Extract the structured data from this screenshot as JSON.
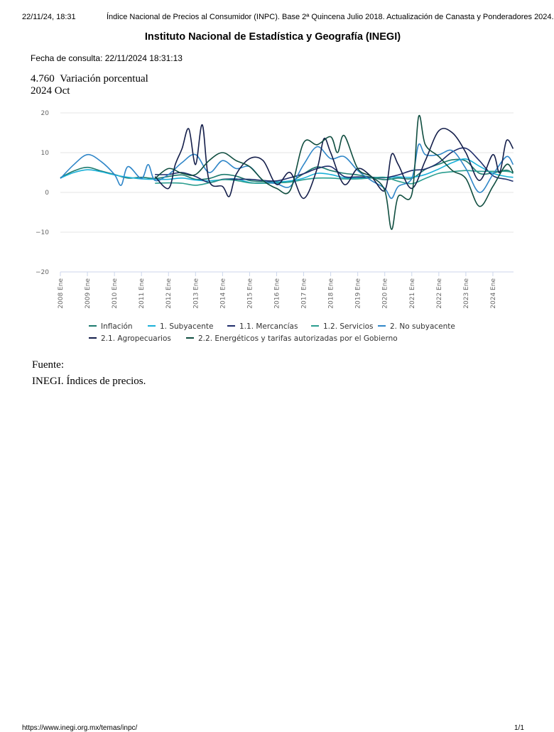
{
  "header": {
    "datetime": "22/11/24, 18:31",
    "doc_title": "Índice Nacional de Precios al Consumidor (INPC). Base 2ª Quincena Julio 2018. Actualización de Canasta y Ponderadores 2024."
  },
  "organization": "Instituto Nacional de Estadística y Geografía (INEGI)",
  "consulta": "Fecha de consulta: 22/11/2024 18:31:13",
  "current_value": {
    "value": "4.760",
    "label": "Variación porcentual",
    "period": "2024 Oct"
  },
  "source": {
    "label": "Fuente:",
    "text": "INEGI. Índices de precios."
  },
  "footer": {
    "url": "https://www.inegi.org.mx/temas/inpc/",
    "page": "1/1"
  },
  "chart_data": {
    "type": "line",
    "ylim": [
      -20,
      20
    ],
    "yticks": [
      "20",
      "10",
      "0",
      "−10",
      "−20"
    ],
    "ytick_values": [
      20,
      10,
      0,
      -10,
      -20
    ],
    "xticks": [
      "2008 Ene",
      "2009 Ene",
      "2010 Ene",
      "2011 Ene",
      "2012 Ene",
      "2013 Ene",
      "2014 Ene",
      "2015 Ene",
      "2016 Ene",
      "2017 Ene",
      "2018 Ene",
      "2019 Ene",
      "2020 Ene",
      "2021 Ene",
      "2022 Ene",
      "2023 Ene",
      "2024 Ene"
    ],
    "xlim": [
      "2008-01",
      "2024-10"
    ],
    "grid": true,
    "legend_position": "bottom",
    "series": [
      {
        "name": "Inflación",
        "color": "#1d7a6e",
        "points": [
          [
            "2008-01",
            3.7
          ],
          [
            "2008-07",
            5.4
          ],
          [
            "2009-01",
            6.3
          ],
          [
            "2009-07",
            5.4
          ],
          [
            "2010-01",
            4.5
          ],
          [
            "2010-07",
            3.6
          ],
          [
            "2011-01",
            3.8
          ],
          [
            "2011-07",
            3.5
          ],
          [
            "2012-01",
            4.0
          ],
          [
            "2012-07",
            4.4
          ],
          [
            "2013-01",
            3.3
          ],
          [
            "2013-07",
            3.5
          ],
          [
            "2014-01",
            4.5
          ],
          [
            "2014-07",
            4.1
          ],
          [
            "2015-01",
            3.0
          ],
          [
            "2015-07",
            2.7
          ],
          [
            "2016-01",
            2.6
          ],
          [
            "2016-07",
            2.7
          ],
          [
            "2017-01",
            4.7
          ],
          [
            "2017-07",
            6.4
          ],
          [
            "2018-01",
            5.5
          ],
          [
            "2018-07",
            4.8
          ],
          [
            "2019-01",
            4.4
          ],
          [
            "2019-07",
            3.8
          ],
          [
            "2020-01",
            3.2
          ],
          [
            "2020-07",
            3.6
          ],
          [
            "2021-01",
            3.5
          ],
          [
            "2021-07",
            5.8
          ],
          [
            "2022-01",
            7.1
          ],
          [
            "2022-07",
            8.2
          ],
          [
            "2023-01",
            7.9
          ],
          [
            "2023-07",
            4.8
          ],
          [
            "2024-01",
            4.9
          ],
          [
            "2024-07",
            5.6
          ],
          [
            "2024-10",
            4.76
          ]
        ]
      },
      {
        "name": "1. Subyacente",
        "color": "#19b0d8",
        "points": [
          [
            "2008-01",
            3.6
          ],
          [
            "2008-07",
            5.0
          ],
          [
            "2009-01",
            5.7
          ],
          [
            "2009-07",
            5.2
          ],
          [
            "2010-01",
            4.4
          ],
          [
            "2010-07",
            3.8
          ],
          [
            "2011-01",
            3.4
          ],
          [
            "2011-07",
            3.3
          ],
          [
            "2012-01",
            3.3
          ],
          [
            "2012-07",
            3.6
          ],
          [
            "2013-01",
            3.1
          ],
          [
            "2013-07",
            2.9
          ],
          [
            "2014-01",
            3.2
          ],
          [
            "2014-07",
            3.4
          ],
          [
            "2015-01",
            2.5
          ],
          [
            "2015-07",
            2.3
          ],
          [
            "2016-01",
            2.6
          ],
          [
            "2016-07",
            2.9
          ],
          [
            "2017-01",
            3.6
          ],
          [
            "2017-07",
            4.8
          ],
          [
            "2018-01",
            4.5
          ],
          [
            "2018-07",
            3.7
          ],
          [
            "2019-01",
            3.6
          ],
          [
            "2019-07",
            3.8
          ],
          [
            "2020-01",
            3.7
          ],
          [
            "2020-07",
            3.9
          ],
          [
            "2021-01",
            3.8
          ],
          [
            "2021-07",
            4.5
          ],
          [
            "2022-01",
            5.9
          ],
          [
            "2022-07",
            7.5
          ],
          [
            "2023-01",
            8.4
          ],
          [
            "2023-07",
            6.6
          ],
          [
            "2024-01",
            4.8
          ],
          [
            "2024-07",
            4.0
          ],
          [
            "2024-10",
            3.8
          ]
        ]
      },
      {
        "name": "1.1. Mercancías",
        "color": "#1f2d6b",
        "points": [
          [
            "2011-07",
            4.5
          ],
          [
            "2012-01",
            4.5
          ],
          [
            "2012-07",
            5.0
          ],
          [
            "2013-01",
            4.0
          ],
          [
            "2013-07",
            2.5
          ],
          [
            "2014-01",
            3.3
          ],
          [
            "2014-07",
            3.3
          ],
          [
            "2015-01",
            3.3
          ],
          [
            "2015-07",
            3.0
          ],
          [
            "2016-01",
            2.9
          ],
          [
            "2016-07",
            3.7
          ],
          [
            "2017-01",
            4.7
          ],
          [
            "2017-07",
            6.0
          ],
          [
            "2018-01",
            6.5
          ],
          [
            "2018-07",
            4.0
          ],
          [
            "2019-01",
            3.9
          ],
          [
            "2019-07",
            3.8
          ],
          [
            "2020-01",
            3.7
          ],
          [
            "2020-07",
            4.4
          ],
          [
            "2021-01",
            5.5
          ],
          [
            "2021-07",
            5.9
          ],
          [
            "2022-01",
            7.5
          ],
          [
            "2022-07",
            10.2
          ],
          [
            "2023-01",
            11.1
          ],
          [
            "2023-07",
            8.0
          ],
          [
            "2024-01",
            4.2
          ],
          [
            "2024-07",
            3.3
          ],
          [
            "2024-10",
            2.8
          ]
        ]
      },
      {
        "name": "1.2. Servicios",
        "color": "#2a9d8f",
        "points": [
          [
            "2011-07",
            2.3
          ],
          [
            "2012-01",
            2.4
          ],
          [
            "2012-07",
            2.3
          ],
          [
            "2013-01",
            1.8
          ],
          [
            "2013-07",
            2.4
          ],
          [
            "2014-01",
            3.2
          ],
          [
            "2014-07",
            3.0
          ],
          [
            "2015-01",
            2.4
          ],
          [
            "2015-07",
            2.3
          ],
          [
            "2016-01",
            2.4
          ],
          [
            "2016-07",
            2.6
          ],
          [
            "2017-01",
            3.2
          ],
          [
            "2017-07",
            3.6
          ],
          [
            "2018-01",
            3.6
          ],
          [
            "2018-07",
            3.4
          ],
          [
            "2019-01",
            3.4
          ],
          [
            "2019-07",
            3.6
          ],
          [
            "2020-01",
            3.8
          ],
          [
            "2020-07",
            2.8
          ],
          [
            "2021-01",
            2.2
          ],
          [
            "2021-07",
            3.5
          ],
          [
            "2022-01",
            4.8
          ],
          [
            "2022-07",
            5.2
          ],
          [
            "2023-01",
            5.5
          ],
          [
            "2023-07",
            5.3
          ],
          [
            "2024-01",
            5.3
          ],
          [
            "2024-07",
            5.3
          ],
          [
            "2024-10",
            5.0
          ]
        ]
      },
      {
        "name": "2. No subyacente",
        "color": "#2f86c8",
        "points": [
          [
            "2008-01",
            3.5
          ],
          [
            "2008-07",
            7.0
          ],
          [
            "2009-01",
            9.5
          ],
          [
            "2009-07",
            7.8
          ],
          [
            "2010-01",
            4.5
          ],
          [
            "2010-04",
            1.8
          ],
          [
            "2010-07",
            6.5
          ],
          [
            "2011-01",
            3.5
          ],
          [
            "2011-04",
            7.0
          ],
          [
            "2011-07",
            3.0
          ],
          [
            "2012-01",
            4.5
          ],
          [
            "2012-07",
            7.5
          ],
          [
            "2013-01",
            9.5
          ],
          [
            "2013-07",
            5.0
          ],
          [
            "2014-01",
            8.0
          ],
          [
            "2014-07",
            6.0
          ],
          [
            "2015-01",
            6.5
          ],
          [
            "2015-07",
            3.0
          ],
          [
            "2016-01",
            2.2
          ],
          [
            "2016-07",
            1.5
          ],
          [
            "2017-01",
            7.0
          ],
          [
            "2017-07",
            11.5
          ],
          [
            "2018-01",
            8.5
          ],
          [
            "2018-07",
            9.0
          ],
          [
            "2019-01",
            5.5
          ],
          [
            "2019-07",
            3.0
          ],
          [
            "2020-01",
            1.0
          ],
          [
            "2020-04",
            -1.5
          ],
          [
            "2020-07",
            1.5
          ],
          [
            "2021-01",
            3.5
          ],
          [
            "2021-04",
            12.0
          ],
          [
            "2021-07",
            9.5
          ],
          [
            "2022-01",
            9.5
          ],
          [
            "2022-07",
            10.5
          ],
          [
            "2023-01",
            6.0
          ],
          [
            "2023-07",
            0.0
          ],
          [
            "2024-01",
            4.5
          ],
          [
            "2024-07",
            9.0
          ],
          [
            "2024-10",
            7.0
          ]
        ]
      },
      {
        "name": "2.1. Agropecuarios",
        "color": "#141e4a",
        "points": [
          [
            "2011-07",
            4.0
          ],
          [
            "2012-01",
            1.0
          ],
          [
            "2012-04",
            7.0
          ],
          [
            "2012-07",
            11.0
          ],
          [
            "2012-10",
            16.0
          ],
          [
            "2013-01",
            7.0
          ],
          [
            "2013-04",
            17.0
          ],
          [
            "2013-07",
            3.0
          ],
          [
            "2014-01",
            1.5
          ],
          [
            "2014-04",
            -1.0
          ],
          [
            "2014-07",
            4.5
          ],
          [
            "2015-01",
            8.5
          ],
          [
            "2015-07",
            8.0
          ],
          [
            "2016-01",
            2.0
          ],
          [
            "2016-07",
            5.0
          ],
          [
            "2017-01",
            -1.5
          ],
          [
            "2017-07",
            6.0
          ],
          [
            "2017-10",
            13.5
          ],
          [
            "2018-01",
            10.0
          ],
          [
            "2018-07",
            2.0
          ],
          [
            "2019-01",
            6.0
          ],
          [
            "2019-07",
            4.0
          ],
          [
            "2020-01",
            0.5
          ],
          [
            "2020-04",
            9.5
          ],
          [
            "2020-07",
            7.0
          ],
          [
            "2021-01",
            1.0
          ],
          [
            "2021-07",
            8.0
          ],
          [
            "2022-01",
            15.5
          ],
          [
            "2022-07",
            15.0
          ],
          [
            "2023-01",
            10.0
          ],
          [
            "2023-07",
            3.0
          ],
          [
            "2024-01",
            9.5
          ],
          [
            "2024-04",
            5.0
          ],
          [
            "2024-07",
            13.0
          ],
          [
            "2024-10",
            11.0
          ]
        ]
      },
      {
        "name": "2.2. Energéticos y tarifas autorizadas por el Gobierno",
        "color": "#0f4d3f",
        "points": [
          [
            "2011-07",
            3.5
          ],
          [
            "2012-01",
            6.0
          ],
          [
            "2012-07",
            4.8
          ],
          [
            "2013-01",
            4.5
          ],
          [
            "2013-07",
            8.0
          ],
          [
            "2014-01",
            10.0
          ],
          [
            "2014-07",
            8.0
          ],
          [
            "2015-01",
            6.5
          ],
          [
            "2015-07",
            3.0
          ],
          [
            "2016-01",
            1.0
          ],
          [
            "2016-07",
            0.5
          ],
          [
            "2017-01",
            12.5
          ],
          [
            "2017-07",
            12.0
          ],
          [
            "2018-01",
            14.0
          ],
          [
            "2018-04",
            10.0
          ],
          [
            "2018-07",
            14.3
          ],
          [
            "2019-01",
            6.0
          ],
          [
            "2019-07",
            4.0
          ],
          [
            "2020-01",
            0.5
          ],
          [
            "2020-04",
            -9.3
          ],
          [
            "2020-07",
            -1.0
          ],
          [
            "2021-01",
            -0.5
          ],
          [
            "2021-04",
            19.0
          ],
          [
            "2021-07",
            12.0
          ],
          [
            "2022-01",
            9.0
          ],
          [
            "2022-07",
            5.5
          ],
          [
            "2023-01",
            3.5
          ],
          [
            "2023-07",
            -3.5
          ],
          [
            "2024-01",
            1.5
          ],
          [
            "2024-07",
            7.0
          ],
          [
            "2024-10",
            5.0
          ]
        ]
      }
    ]
  }
}
